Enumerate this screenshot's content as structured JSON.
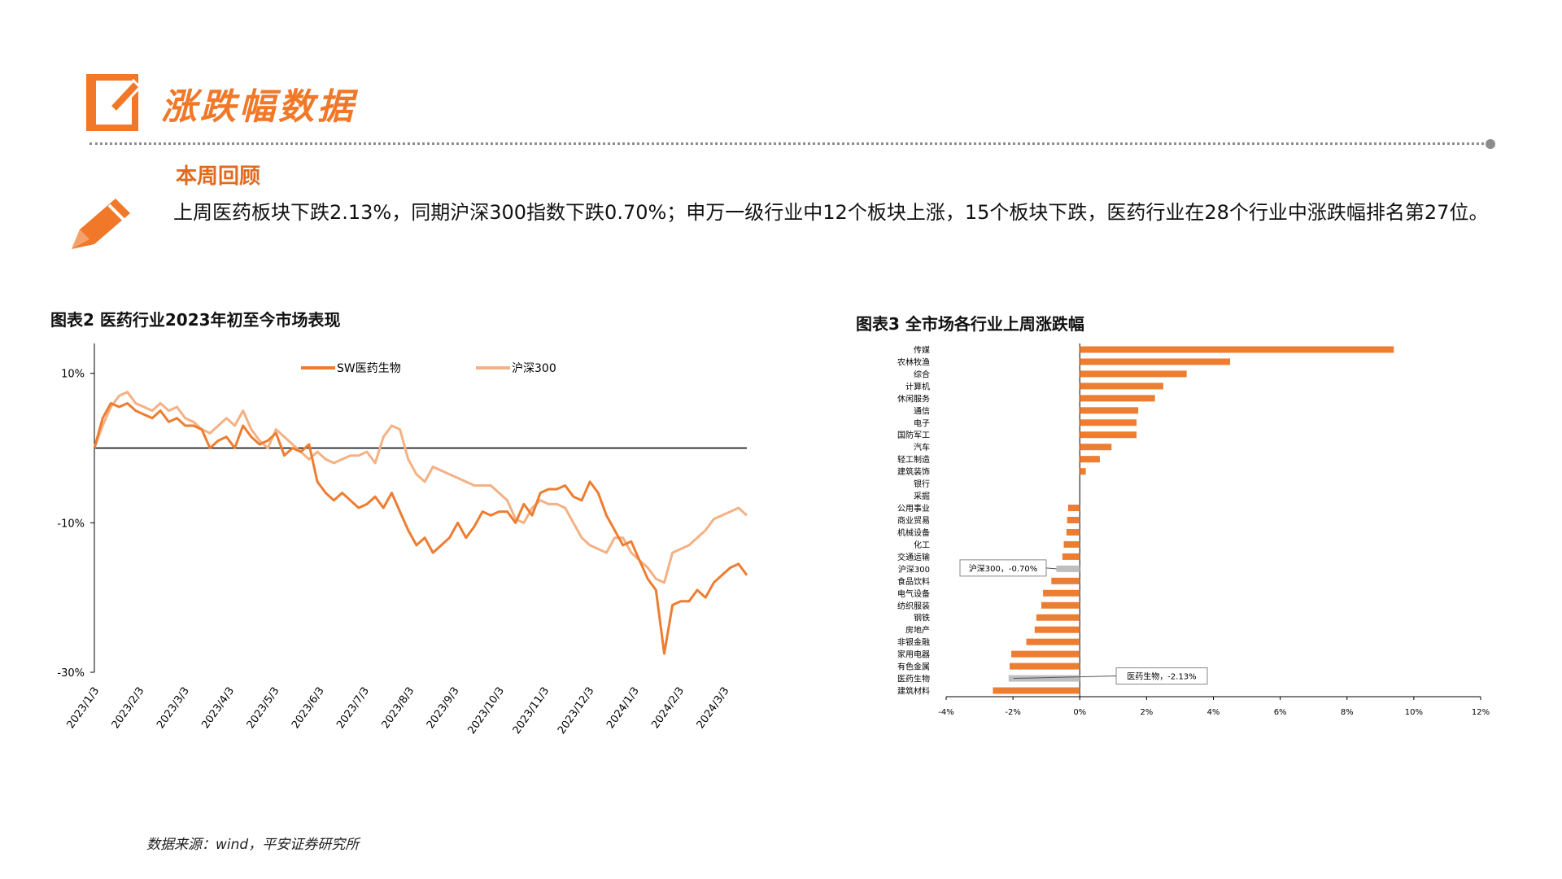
{
  "header": {
    "title": "涨跌幅数据",
    "accent_color": "#F07828",
    "icon": "edit-box-icon"
  },
  "review": {
    "icon": "pencil-icon",
    "title": "本周回顾",
    "text": "上周医药板块下跌2.13%，同期沪深300指数下跌0.70%；申万一级行业中12个板块上涨，15个板块下跌，医药行业在28个行业中涨跌幅排名第27位。"
  },
  "source": "数据来源：wind，平安证券研究所",
  "chart_data": [
    {
      "type": "line",
      "title": "图表2 医药行业2023年初至今市场表现",
      "x_ticks": [
        "2023/1/3",
        "2023/2/3",
        "2023/3/3",
        "2023/4/3",
        "2023/5/3",
        "2023/6/3",
        "2023/7/3",
        "2023/8/3",
        "2023/9/3",
        "2023/10/3",
        "2023/11/3",
        "2023/12/3",
        "2024/1/3",
        "2024/2/3",
        "2024/3/3"
      ],
      "y_ticks": [
        "10%",
        "-10%",
        "-30%"
      ],
      "ylim": [
        -30,
        14
      ],
      "series": [
        {
          "name": "SW医药生物",
          "color": "#ED7D31",
          "values": [
            0,
            4,
            6,
            5.5,
            6,
            5,
            4.5,
            4,
            5,
            3.5,
            4,
            3,
            3,
            2.5,
            0,
            1,
            1.5,
            0,
            3,
            1.5,
            0.5,
            1,
            2,
            -1,
            0,
            -0.5,
            0.5,
            -4.5,
            -6,
            -7,
            -6,
            -7,
            -8,
            -7.5,
            -6.5,
            -8,
            -6,
            -8.5,
            -11,
            -13,
            -12,
            -14,
            -13,
            -12,
            -10,
            -12,
            -10.5,
            -8.5,
            -9,
            -8.5,
            -8.5,
            -10,
            -7.5,
            -9,
            -6,
            -5.5,
            -5.5,
            -5,
            -6.5,
            -7,
            -4.5,
            -6,
            -9,
            -11,
            -13,
            -12.5,
            -15,
            -17.5,
            -19,
            -27.5,
            -21,
            -20.5,
            -20.5,
            -19,
            -20,
            -18,
            -17,
            -16,
            -15.5,
            -17
          ]
        },
        {
          "name": "沪深300",
          "color": "#F4B183",
          "values": [
            0,
            3,
            5.5,
            7,
            7.5,
            6,
            5.5,
            5,
            6,
            5,
            5.5,
            4,
            3.5,
            2.5,
            2,
            3,
            4,
            3,
            5,
            2.5,
            1,
            0,
            2.5,
            1.5,
            0.5,
            -0.5,
            -1.5,
            -0.5,
            -1.5,
            -2,
            -1.5,
            -1,
            -1,
            -0.5,
            -2,
            1.5,
            3,
            2.5,
            -1.5,
            -3.5,
            -4.5,
            -2.5,
            -3,
            -3.5,
            -4,
            -4.5,
            -5,
            -5,
            -5,
            -6,
            -7,
            -9.5,
            -10,
            -8,
            -7,
            -7.5,
            -7.5,
            -8,
            -10,
            -12,
            -13,
            -13.5,
            -14,
            -12,
            -12,
            -14,
            -15,
            -16,
            -17.5,
            -18,
            -14,
            -13.5,
            -13,
            -12,
            -11,
            -9.5,
            -9,
            -8.5,
            -8,
            -9
          ]
        }
      ]
    },
    {
      "type": "bar",
      "orientation": "horizontal",
      "title": "图表3 全市场各行业上周涨跌幅",
      "categories": [
        "传媒",
        "农林牧渔",
        "综合",
        "计算机",
        "休闲服务",
        "通信",
        "电子",
        "国防军工",
        "汽车",
        "轻工制造",
        "建筑装饰",
        "银行",
        "采掘",
        "公用事业",
        "商业贸易",
        "机械设备",
        "化工",
        "交通运输",
        "沪深300",
        "食品饮料",
        "电气设备",
        "纺织服装",
        "钢铁",
        "房地产",
        "非银金融",
        "家用电器",
        "有色金属",
        "医药生物",
        "建筑材料"
      ],
      "values": [
        9.4,
        4.5,
        3.2,
        2.5,
        2.25,
        1.75,
        1.7,
        1.7,
        0.95,
        0.6,
        0.18,
        0,
        0,
        -0.35,
        -0.38,
        -0.4,
        -0.48,
        -0.52,
        -0.7,
        -0.85,
        -1.1,
        -1.15,
        -1.3,
        -1.35,
        -1.6,
        -2.05,
        -2.1,
        -2.13,
        -2.6
      ],
      "highlight": [
        "沪深300",
        "医药生物"
      ],
      "highlight_color": "#BFBFBF",
      "bar_color": "#ED7D31",
      "x_ticks": [
        "-4%",
        "-2%",
        "0%",
        "2%",
        "4%",
        "6%",
        "8%",
        "10%",
        "12%"
      ],
      "xlim": [
        -4,
        12
      ],
      "annotations": [
        {
          "category": "沪深300",
          "text": "沪深300，-0.70%"
        },
        {
          "category": "医药生物",
          "text": "医药生物，-2.13%"
        }
      ]
    }
  ]
}
